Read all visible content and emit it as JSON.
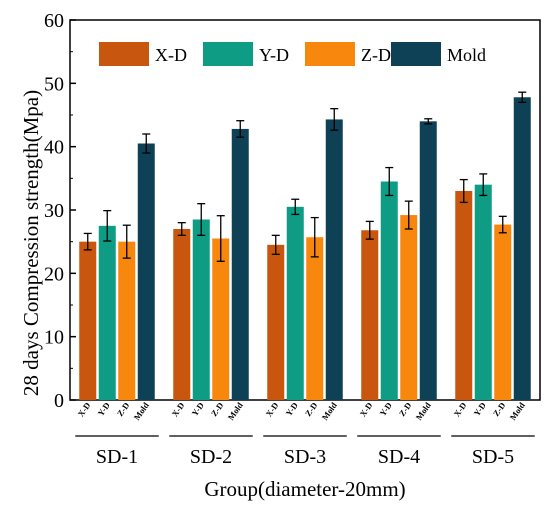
{
  "chart_data": {
    "type": "bar",
    "xlabel": "Group(diameter-20mm)",
    "ylabel": "28 days Compression strength(Mpa)",
    "ylim": [
      0,
      60
    ],
    "yticks": [
      0,
      10,
      20,
      30,
      40,
      50,
      60
    ],
    "categories": [
      "SD-1",
      "SD-2",
      "SD-3",
      "SD-4",
      "SD-5"
    ],
    "bar_labels": [
      "X-D",
      "Y-D",
      "Z-D",
      "Mold"
    ],
    "legend_position": "top",
    "grid": false,
    "series": [
      {
        "name": "X-D",
        "color": "#C8560F",
        "values": [
          25.0,
          27.0,
          24.5,
          26.8,
          33.0
        ],
        "errors": [
          1.3,
          1.0,
          1.5,
          1.4,
          1.8
        ]
      },
      {
        "name": "Y-D",
        "color": "#0E9C84",
        "values": [
          27.5,
          28.5,
          30.5,
          34.5,
          34.0
        ],
        "errors": [
          2.4,
          2.5,
          1.2,
          2.2,
          1.7
        ]
      },
      {
        "name": "Z-D",
        "color": "#F8870E",
        "values": [
          25.0,
          25.5,
          25.7,
          29.2,
          27.7
        ],
        "errors": [
          2.6,
          3.6,
          3.1,
          2.2,
          1.3
        ]
      },
      {
        "name": "Mold",
        "color": "#0E4155",
        "values": [
          40.5,
          42.8,
          44.3,
          44.0,
          47.8
        ],
        "errors": [
          1.5,
          1.3,
          1.7,
          0.4,
          0.8
        ]
      }
    ]
  }
}
